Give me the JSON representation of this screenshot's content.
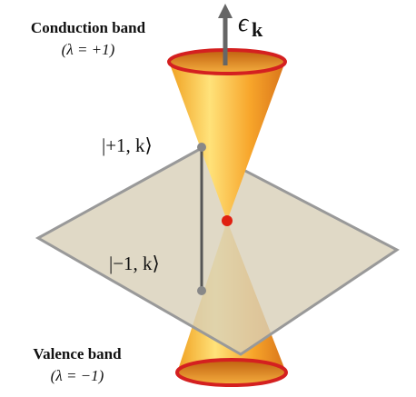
{
  "header": {
    "conduction_band": "Conduction band",
    "conduction_lambda": "(λ = +1)",
    "valence_band": "Valence band",
    "valence_lambda": "(λ = −1)"
  },
  "axis_label": {
    "symbol": "ϵ",
    "subscript": "k"
  },
  "states": {
    "upper": "|+1, k⟩",
    "lower": "|−1, k⟩"
  }
}
